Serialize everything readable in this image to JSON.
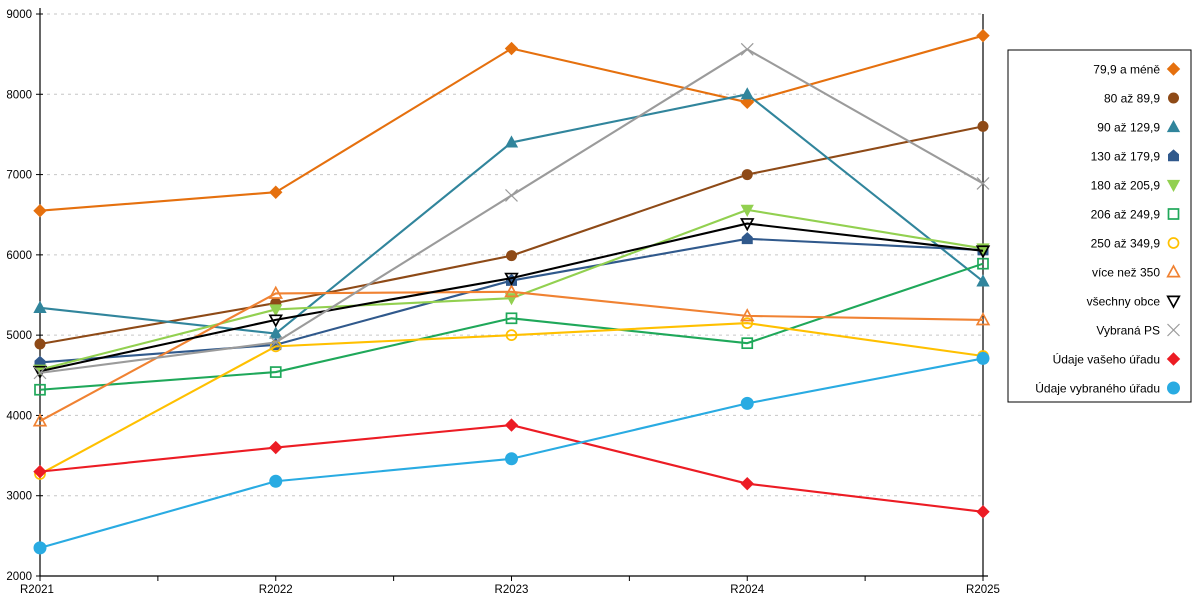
{
  "chart_data": {
    "type": "line",
    "title": "",
    "xlabel": "",
    "ylabel": "",
    "x_categories": [
      "R2021",
      "R2022",
      "R2023",
      "R2024",
      "R2025"
    ],
    "ylim": [
      2000,
      9000
    ],
    "ytick_step": 1000,
    "ytick_labels": [
      "2000",
      "3000",
      "4000",
      "5000",
      "6000",
      "7000",
      "8000",
      "9000"
    ],
    "grid": "horizontal-dashed",
    "gridline_color": "#c6c6c6",
    "axis_color": "#000000",
    "legend_position": "right-box",
    "legend_border_color": "#000000",
    "series": [
      {
        "name": "79,9 a méně",
        "color": "#e5700e",
        "marker": "diamond",
        "filled": true,
        "values": [
          6550,
          6780,
          8570,
          7900,
          8730
        ]
      },
      {
        "name": "80 až 89,9",
        "color": "#8e4a17",
        "marker": "circle",
        "filled": true,
        "values": [
          4890,
          5400,
          5990,
          7000,
          7600
        ]
      },
      {
        "name": "90 až 129,9",
        "color": "#31859c",
        "marker": "triangle",
        "filled": true,
        "values": [
          5340,
          5020,
          7400,
          8000,
          5670
        ]
      },
      {
        "name": "130 až 179,9",
        "color": "#30598c",
        "marker": "pentagon",
        "filled": true,
        "values": [
          4660,
          4880,
          5680,
          6200,
          6060
        ]
      },
      {
        "name": "180 až 205,9",
        "color": "#92d050",
        "marker": "triangle-down",
        "filled": true,
        "values": [
          4570,
          5320,
          5460,
          6560,
          6080
        ]
      },
      {
        "name": "206 až 249,9",
        "color": "#1fa85a",
        "marker": "square",
        "filled": false,
        "values": [
          4320,
          4540,
          5210,
          4900,
          5890
        ]
      },
      {
        "name": "250 až 349,9",
        "color": "#ffc000",
        "marker": "circle",
        "filled": false,
        "values": [
          3270,
          4860,
          5000,
          5150,
          4740
        ]
      },
      {
        "name": "více než 350",
        "color": "#f08232",
        "marker": "triangle",
        "filled": false,
        "values": [
          3930,
          5520,
          5540,
          5240,
          5190
        ]
      },
      {
        "name": "všechny obce",
        "color": "#000000",
        "marker": "triangle-down",
        "filled": false,
        "values": [
          4550,
          5190,
          5710,
          6390,
          6050
        ]
      },
      {
        "name": "Vybraná PS",
        "color": "#9b9b9b",
        "marker": "x",
        "filled": false,
        "values": [
          4530,
          4910,
          6740,
          8560,
          6890
        ]
      },
      {
        "name": "Údaje vašeho úřadu",
        "color": "#ec1c24",
        "marker": "diamond",
        "filled": true,
        "values": [
          3300,
          3600,
          3880,
          3150,
          2800
        ]
      },
      {
        "name": "Údaje vybraného úřadu",
        "color": "#29abe2",
        "marker": "circle-big",
        "filled": true,
        "values": [
          2350,
          3180,
          3460,
          4150,
          4710
        ]
      }
    ]
  }
}
